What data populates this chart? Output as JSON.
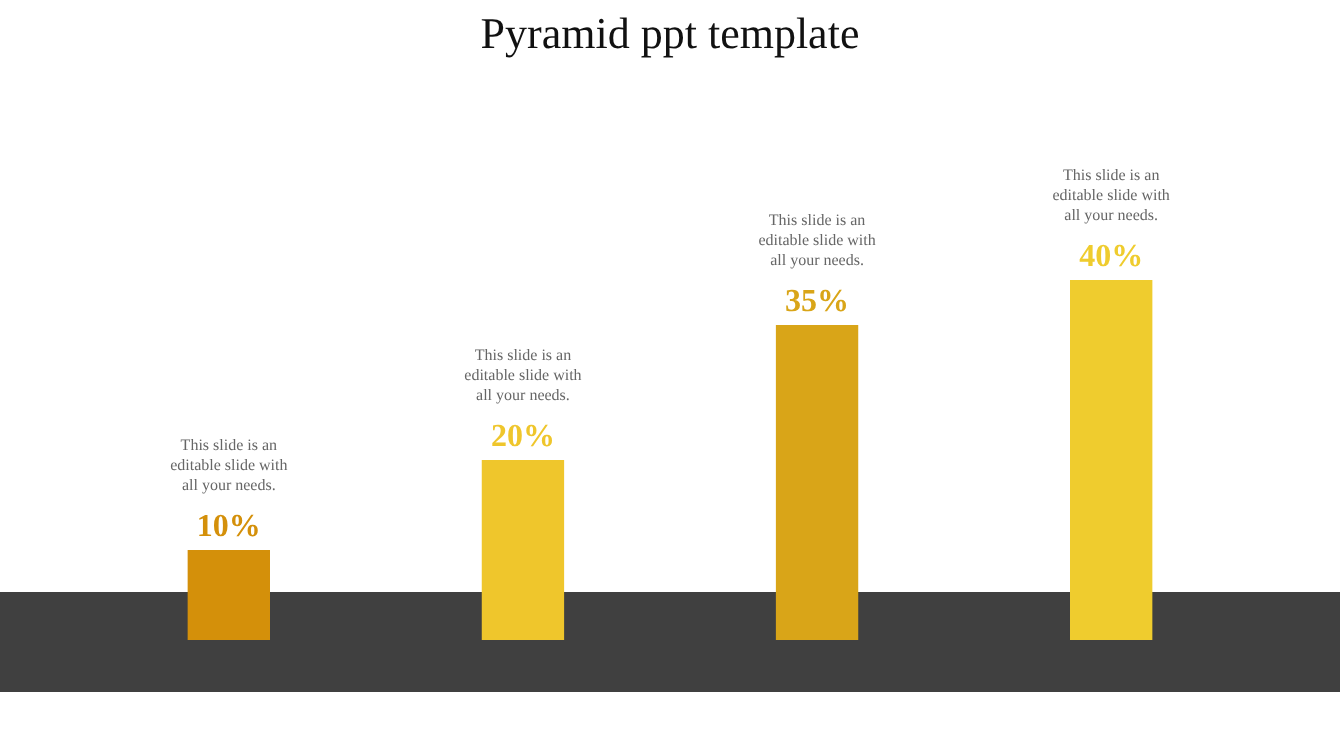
{
  "chart_data": {
    "type": "bar",
    "title": "Pyramid ppt template",
    "categories": [
      null,
      null,
      null,
      null
    ],
    "values": [
      10,
      20,
      35,
      40
    ],
    "annotations": [
      "This slide is an editable slide with all your needs.",
      "This slide is an editable slide with all your needs.",
      "This slide is an editable slide with all your needs.",
      "This slide is an editable slide with all your needs."
    ],
    "value_labels": [
      "10%",
      "20%",
      "35%",
      "40%"
    ],
    "colors": [
      "#d4900a",
      "#efc62c",
      "#d9a518",
      "#efcc2e"
    ]
  }
}
